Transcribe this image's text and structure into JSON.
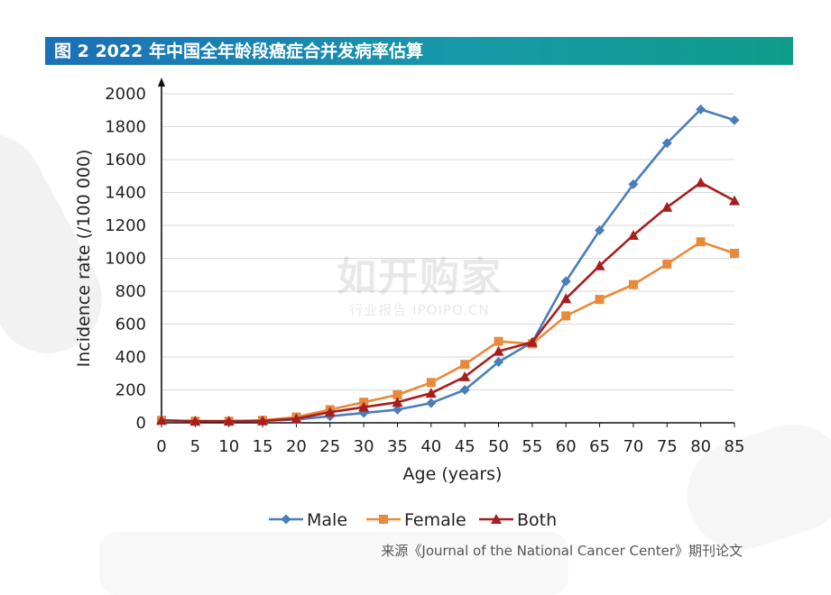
{
  "header": {
    "title": "图 2 2022 年中国全年龄段癌症合并发病率估算"
  },
  "watermark": {
    "main": "如开购家",
    "sub": "行业报告 IPOIPO.CN"
  },
  "source_text": "来源《Journal of the National Cancer Center》期刊论文",
  "chart_data": {
    "type": "line",
    "title": "",
    "xlabel": "Age (years)",
    "ylabel": "Incidence rate (/100 000)",
    "x": [
      0,
      5,
      10,
      15,
      20,
      25,
      30,
      35,
      40,
      45,
      50,
      55,
      60,
      65,
      70,
      75,
      80,
      85
    ],
    "xlim": [
      0,
      85
    ],
    "ylim": [
      0,
      2000
    ],
    "yticks": [
      0,
      200,
      400,
      600,
      800,
      1000,
      1200,
      1400,
      1600,
      1800,
      2000
    ],
    "grid": true,
    "legend_position": "bottom",
    "series": [
      {
        "name": "Male",
        "color": "#4a7ebb",
        "marker": "diamond",
        "values": [
          15,
          10,
          10,
          12,
          20,
          40,
          60,
          80,
          120,
          200,
          370,
          490,
          860,
          1170,
          1450,
          1700,
          1905,
          1840
        ]
      },
      {
        "name": "Female",
        "color": "#e88a3a",
        "marker": "square",
        "values": [
          15,
          10,
          10,
          15,
          35,
          80,
          125,
          170,
          245,
          355,
          495,
          480,
          650,
          750,
          840,
          965,
          1100,
          1030
        ]
      },
      {
        "name": "Both",
        "color": "#a81e1e",
        "marker": "triangle",
        "values": [
          15,
          10,
          10,
          12,
          25,
          65,
          95,
          125,
          180,
          280,
          435,
          490,
          755,
          955,
          1140,
          1310,
          1460,
          1350
        ]
      }
    ]
  }
}
